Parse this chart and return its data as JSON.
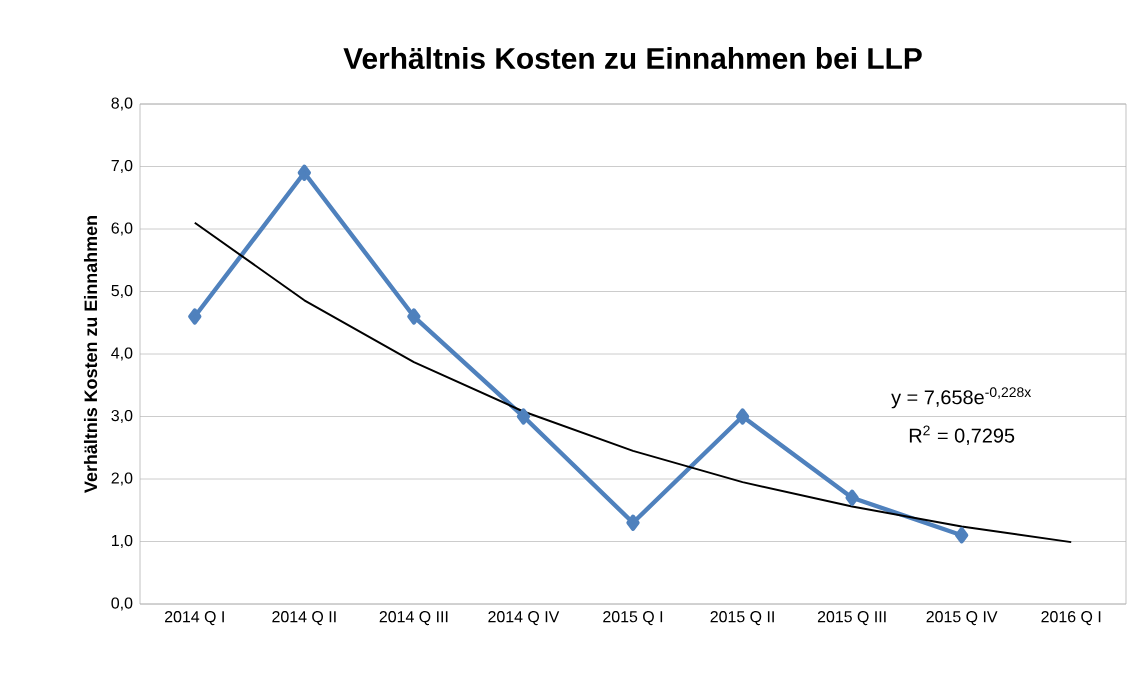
{
  "chart_data": {
    "type": "line",
    "title": "Verhältnis Kosten zu Einnahmen bei LLP",
    "ylabel": "Verhältnis Kosten  zu Einnahmen",
    "categories": [
      "2014 Q I",
      "2014 Q II",
      "2014 Q III",
      "2014 Q IV",
      "2015 Q I",
      "2015 Q II",
      "2015 Q III",
      "2015 Q IV",
      "2016 Q I"
    ],
    "series": [
      {
        "color": "#4f81bd",
        "marker": "diamond",
        "values": [
          4.6,
          6.9,
          4.6,
          3.0,
          1.3,
          3.0,
          1.7,
          1.1,
          null
        ]
      },
      {
        "color": "#000000",
        "marker": "none",
        "values": [
          6.1,
          4.86,
          3.87,
          3.08,
          2.45,
          1.95,
          1.56,
          1.24,
          0.99
        ]
      }
    ],
    "ylim": [
      0,
      8
    ],
    "yticks": [
      {
        "value": 0,
        "label": "0,0"
      },
      {
        "value": 1,
        "label": "1,0"
      },
      {
        "value": 2,
        "label": "2,0"
      },
      {
        "value": 3,
        "label": "3,0"
      },
      {
        "value": 4,
        "label": "4,0"
      },
      {
        "value": 5,
        "label": "5,0"
      },
      {
        "value": 6,
        "label": "6,0"
      },
      {
        "value": 7,
        "label": "7,0"
      },
      {
        "value": 8,
        "label": "8,0"
      }
    ],
    "grid": "y",
    "annotations": [
      "y = 7,658e$^{-0,228x}$",
      "R$^{2}$ = 0,7295"
    ]
  }
}
